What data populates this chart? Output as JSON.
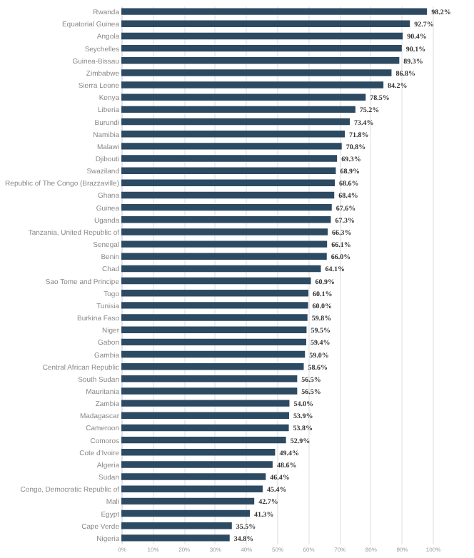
{
  "chart_data": {
    "type": "bar",
    "orientation": "horizontal",
    "categories": [
      "Rwanda",
      "Equatorial Guinea",
      "Angola",
      "Seychelles",
      "Guinea-Bissau",
      "Zimbabwe",
      "Sierra Leone",
      "Kenya",
      "Liberia",
      "Burundi",
      "Namibia",
      "Malawi",
      "Djibouti",
      "Swaziland",
      "Republic of The Congo (Brazzaville)",
      "Ghana",
      "Guinea",
      "Uganda",
      "Tanzania, United Republic of",
      "Senegal",
      "Benin",
      "Chad",
      "Sao Tome and Principe",
      "Togo",
      "Tunisia",
      "Burkina Faso",
      "Niger",
      "Gabon",
      "Gambia",
      "Central African Republic",
      "South Sudan",
      "Mauritania",
      "Zambia",
      "Madagascar",
      "Cameroon",
      "Comoros",
      "Cote d'Ivoire",
      "Algeria",
      "Sudan",
      "Congo, Democratic Republic of",
      "Mali",
      "Egypt",
      "Cape Verde",
      "Nigeria"
    ],
    "values": [
      98.2,
      92.7,
      90.4,
      90.1,
      89.3,
      86.8,
      84.2,
      78.5,
      75.2,
      73.4,
      71.8,
      70.8,
      69.3,
      68.9,
      68.6,
      68.4,
      67.6,
      67.3,
      66.3,
      66.1,
      66.0,
      64.1,
      60.9,
      60.1,
      60.0,
      59.8,
      59.5,
      59.4,
      59.0,
      58.6,
      56.5,
      56.5,
      54.0,
      53.9,
      53.8,
      52.9,
      49.4,
      48.6,
      46.4,
      45.4,
      42.7,
      41.3,
      35.5,
      34.8
    ],
    "value_labels": [
      "98.2%",
      "92.7%",
      "90.4%",
      "90.1%",
      "89.3%",
      "86.8%",
      "84.2%",
      "78.5%",
      "75.2%",
      "73.4%",
      "71.8%",
      "70.8%",
      "69.3%",
      "68.9%",
      "68.6%",
      "68.4%",
      "67.6%",
      "67.3%",
      "66.3%",
      "66.1%",
      "66.0%",
      "64.1%",
      "60.9%",
      "60.1%",
      "60.0%",
      "59.8%",
      "59.5%",
      "59.4%",
      "59.0%",
      "58.6%",
      "56.5%",
      "56.5%",
      "54.0%",
      "53.9%",
      "53.8%",
      "52.9%",
      "49.4%",
      "48.6%",
      "46.4%",
      "45.4%",
      "42.7%",
      "41.3%",
      "35.5%",
      "34.8%"
    ],
    "color": "#2d4a63",
    "xlim": [
      0,
      100
    ],
    "xticks": [
      {
        "value": 0,
        "label": "0%"
      },
      {
        "value": 10,
        "label": "10%"
      },
      {
        "value": 20,
        "label": "20%"
      },
      {
        "value": 30,
        "label": "30%"
      },
      {
        "value": 40,
        "label": "40%"
      },
      {
        "value": 50,
        "label": "50%"
      },
      {
        "value": 60,
        "label": "60%"
      },
      {
        "value": 70,
        "label": "70%"
      },
      {
        "value": 80,
        "label": "80%"
      },
      {
        "value": 90,
        "label": "90%"
      },
      {
        "value": 100,
        "label": "100%"
      }
    ],
    "grid": "x"
  }
}
